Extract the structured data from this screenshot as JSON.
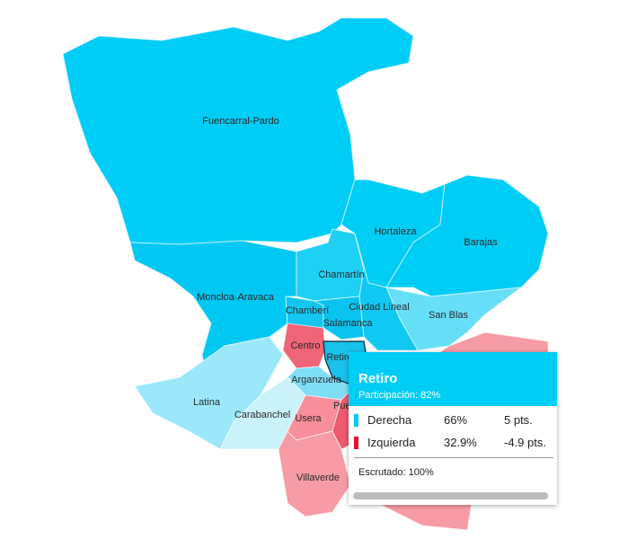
{
  "districts": [
    {
      "name": "Fuencarral-Pardo",
      "color": "#00cdf6"
    },
    {
      "name": "Moncloa-Aravaca",
      "color": "#00c8f2"
    },
    {
      "name": "Hortaleza",
      "color": "#00cdf6"
    },
    {
      "name": "Barajas",
      "color": "#00cdf6"
    },
    {
      "name": "San Blas",
      "color": "#66def8"
    },
    {
      "name": "Chamartín",
      "color": "#1fd0f5"
    },
    {
      "name": "Ciudad Lineal",
      "color": "#10c9f2"
    },
    {
      "name": "Chamberí",
      "color": "#14c6ef"
    },
    {
      "name": "Salamanca",
      "color": "#08c3ee"
    },
    {
      "name": "Centro",
      "color": "#f06477"
    },
    {
      "name": "Retiro",
      "color": "#18c2ea"
    },
    {
      "name": "Arganzuela",
      "color": "#7fdef6"
    },
    {
      "name": "Latina",
      "color": "#9be8fa"
    },
    {
      "name": "Carabanchel",
      "color": "#c9f2fb"
    },
    {
      "name": "Usera",
      "color": "#f78e99"
    },
    {
      "name": "Puente de Vallecas",
      "color": "#ee5a6e"
    },
    {
      "name": "Villaverde",
      "color": "#f79ba4"
    }
  ],
  "tooltip": {
    "title": "Retiro",
    "subtitle": "Participación: 82%",
    "rows": [
      {
        "name": "Derecha",
        "color": "#00c8f5",
        "share": "66%",
        "change": "5 pts."
      },
      {
        "name": "Izquierda",
        "color": "#e8102e",
        "share": "32.9%",
        "change": "-4.9 pts."
      }
    ],
    "footer": "Escrutado: 100%"
  }
}
